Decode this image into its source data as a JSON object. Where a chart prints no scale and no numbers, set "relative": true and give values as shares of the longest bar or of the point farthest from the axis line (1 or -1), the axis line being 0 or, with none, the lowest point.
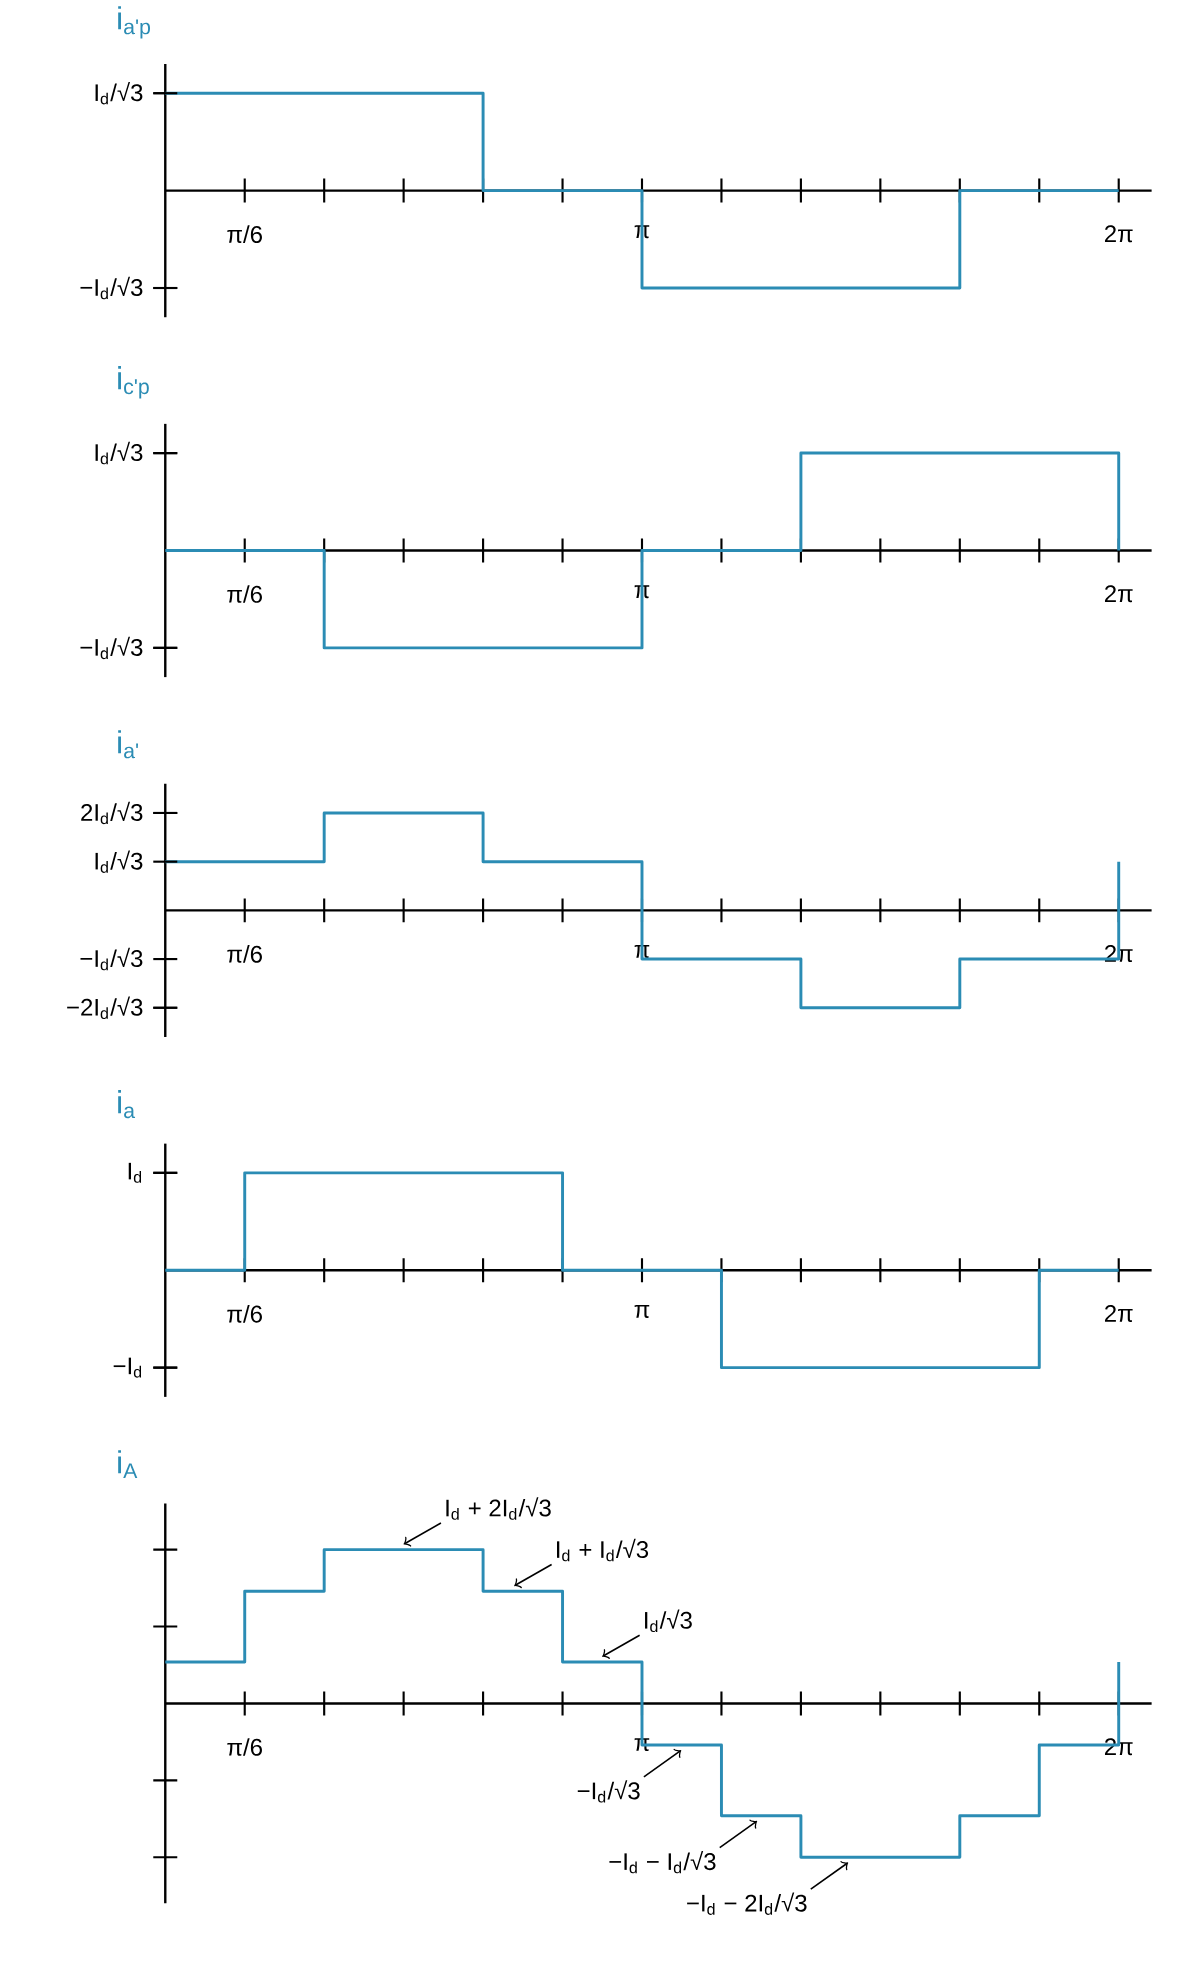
{
  "chart_data": [
    {
      "type": "step",
      "title": "i$_{a'p}$",
      "color": "#2b8cb4",
      "relative": true,
      "xlim": [
        0,
        6.5
      ],
      "xticks": [
        {
          "value": 0.5236,
          "label": "π/6"
        },
        {
          "value": 1.0472,
          "label": null
        },
        {
          "value": 1.5708,
          "label": null
        },
        {
          "value": 2.0944,
          "label": null
        },
        {
          "value": 2.618,
          "label": null
        },
        {
          "value": 3.1416,
          "label": "π"
        },
        {
          "value": 3.6652,
          "label": null
        },
        {
          "value": 4.1888,
          "label": null
        },
        {
          "value": 4.7124,
          "label": null
        },
        {
          "value": 5.236,
          "label": null
        },
        {
          "value": 5.7596,
          "label": null
        },
        {
          "value": 6.2832,
          "label": "2π"
        }
      ],
      "annotations": [
        "I$_{d}$/√3",
        "−I$_{d}$/√3"
      ],
      "x": [
        0,
        2.0944,
        3.1416,
        5.236,
        6.2832
      ],
      "values": [
        1,
        0,
        -1,
        0,
        0
      ]
    },
    {
      "type": "step",
      "title": "i$_{c'p}$",
      "color": "#2b8cb4",
      "relative": true,
      "xlim": [
        0,
        6.5
      ],
      "xticks": [
        {
          "value": 0.5236,
          "label": "π/6"
        },
        {
          "value": 1.0472,
          "label": null
        },
        {
          "value": 1.5708,
          "label": null
        },
        {
          "value": 2.0944,
          "label": null
        },
        {
          "value": 2.618,
          "label": null
        },
        {
          "value": 3.1416,
          "label": "π"
        },
        {
          "value": 3.6652,
          "label": null
        },
        {
          "value": 4.1888,
          "label": null
        },
        {
          "value": 4.7124,
          "label": null
        },
        {
          "value": 5.236,
          "label": null
        },
        {
          "value": 5.7596,
          "label": null
        },
        {
          "value": 6.2832,
          "label": "2π"
        }
      ],
      "annotations": [
        "I$_{d}$/√3",
        "−I$_{d}$/√3"
      ],
      "x": [
        0,
        1.0472,
        3.1416,
        4.1888,
        6.2832
      ],
      "values": [
        0,
        -1,
        0,
        1,
        0
      ]
    },
    {
      "type": "step",
      "title": "i$_{a'}$",
      "color": "#2b8cb4",
      "relative": true,
      "xlim": [
        0,
        6.5
      ],
      "xticks": [
        {
          "value": 0.5236,
          "label": "π/6"
        },
        {
          "value": 1.0472,
          "label": null
        },
        {
          "value": 1.5708,
          "label": null
        },
        {
          "value": 2.0944,
          "label": null
        },
        {
          "value": 2.618,
          "label": null
        },
        {
          "value": 3.1416,
          "label": "π"
        },
        {
          "value": 3.6652,
          "label": null
        },
        {
          "value": 4.1888,
          "label": null
        },
        {
          "value": 4.7124,
          "label": null
        },
        {
          "value": 5.236,
          "label": null
        },
        {
          "value": 5.7596,
          "label": null
        },
        {
          "value": 6.2832,
          "label": "2π"
        }
      ],
      "annotations": [
        "2I$_{d}$/√3",
        "I$_{d}$/√3",
        "−I$_{d}$/√3",
        "−2I$_{d}$/√3"
      ],
      "x": [
        0,
        1.0472,
        2.0944,
        3.1416,
        4.1888,
        5.236,
        6.2832
      ],
      "values": [
        0.5,
        1,
        0.5,
        -0.5,
        -1,
        -0.5,
        0.5
      ]
    },
    {
      "type": "step",
      "title": "i$_{a}$",
      "color": "#2b8cb4",
      "relative": true,
      "xlim": [
        0,
        6.5
      ],
      "xticks": [
        {
          "value": 0.5236,
          "label": "π/6"
        },
        {
          "value": 1.0472,
          "label": null
        },
        {
          "value": 1.5708,
          "label": null
        },
        {
          "value": 2.0944,
          "label": null
        },
        {
          "value": 2.618,
          "label": null
        },
        {
          "value": 3.1416,
          "label": "π"
        },
        {
          "value": 3.6652,
          "label": null
        },
        {
          "value": 4.1888,
          "label": null
        },
        {
          "value": 4.7124,
          "label": null
        },
        {
          "value": 5.236,
          "label": null
        },
        {
          "value": 5.7596,
          "label": null
        },
        {
          "value": 6.2832,
          "label": "2π"
        }
      ],
      "annotations": [
        "I$_{d}$",
        "−I$_{d}$"
      ],
      "x": [
        0,
        0.5236,
        2.618,
        3.6652,
        5.7596,
        6.2832
      ],
      "values": [
        0,
        1,
        0,
        -1,
        0,
        0
      ]
    },
    {
      "type": "step",
      "title": "i$_{A}$",
      "color": "#2b8cb4",
      "relative": true,
      "xlim": [
        0,
        6.5
      ],
      "xticks": [
        {
          "value": 0.5236,
          "label": "π/6"
        },
        {
          "value": 1.0472,
          "label": null
        },
        {
          "value": 1.5708,
          "label": null
        },
        {
          "value": 2.0944,
          "label": null
        },
        {
          "value": 2.618,
          "label": null
        },
        {
          "value": 3.1416,
          "label": "π"
        },
        {
          "value": 3.6652,
          "label": null
        },
        {
          "value": 4.1888,
          "label": null
        },
        {
          "value": 4.7124,
          "label": null
        },
        {
          "value": 5.236,
          "label": null
        },
        {
          "value": 5.7596,
          "label": null
        },
        {
          "value": 6.2832,
          "label": "2π"
        }
      ],
      "x": [
        0,
        0.5236,
        1.0472,
        2.0944,
        2.618,
        3.1416,
        3.6652,
        4.1888,
        5.236,
        5.7596,
        6.2832
      ],
      "values": [
        0.27,
        0.73,
        1,
        0.73,
        0.27,
        -0.27,
        -0.73,
        -1,
        -0.73,
        -0.27,
        0.27
      ],
      "annotations": [
        {
          "text": "I$_{d}$ + 2I$_{d}$/√3",
          "x": 1.5708,
          "y": 1
        },
        {
          "text": "I$_{d}$ + I$_{d}$/√3",
          "x": 2.3,
          "y": 0.73
        },
        {
          "text": "I$_{d}$/√3",
          "x": 2.88,
          "y": 0.27
        },
        {
          "text": "−I$_{d}$/√3",
          "x": 3.4,
          "y": -0.27
        },
        {
          "text": "−I$_{d}$ − I$_{d}$/√3",
          "x": 3.9,
          "y": -0.73
        },
        {
          "text": "−I$_{d}$ − 2I$_{d}$/√3",
          "x": 4.5,
          "y": -1
        }
      ]
    }
  ]
}
